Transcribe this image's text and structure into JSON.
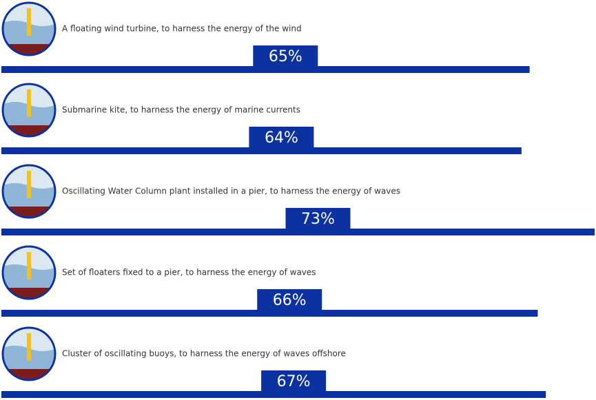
{
  "chart_data": {
    "type": "bar",
    "orientation": "horizontal",
    "color": "#0b32a0",
    "categories": [
      "A floating wind turbine, to harness the energy of the wind",
      "Submarine kite, to harness the energy of marine currents",
      "Oscillating Water Column plant installed in a pier, to harness the energy of waves",
      "Set of floaters fixed to a pier, to harness the energy of waves",
      "Cluster of oscillating buoys, to harness the energy of waves offshore"
    ],
    "values": [
      65,
      64,
      73,
      66,
      67
    ],
    "value_labels": [
      "65%",
      "64%",
      "73%",
      "66%",
      "67%"
    ]
  }
}
